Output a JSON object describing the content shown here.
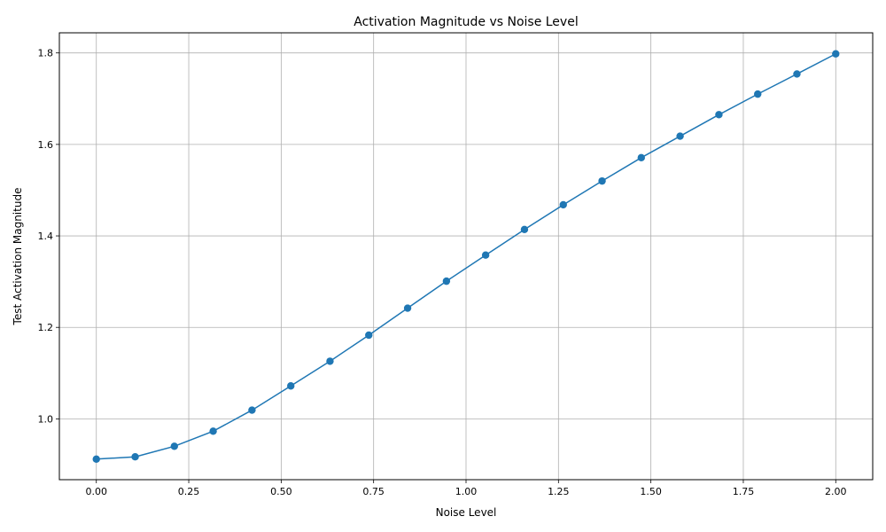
{
  "chart_data": {
    "type": "line",
    "title": "Activation Magnitude vs Noise Level",
    "xlabel": "Noise Level",
    "ylabel": "Test Activation Magnitude",
    "xlim": [
      -0.1,
      2.1
    ],
    "ylim": [
      0.867,
      1.844
    ],
    "xticks": [
      0.0,
      0.25,
      0.5,
      0.75,
      1.0,
      1.25,
      1.5,
      1.75,
      2.0
    ],
    "xtick_labels": [
      "0.00",
      "0.25",
      "0.50",
      "0.75",
      "1.00",
      "1.25",
      "1.50",
      "1.75",
      "2.00"
    ],
    "yticks": [
      1.0,
      1.2,
      1.4,
      1.6,
      1.8
    ],
    "ytick_labels": [
      "1.0",
      "1.2",
      "1.4",
      "1.6",
      "1.8"
    ],
    "grid": true,
    "marker": "circle",
    "color": "#1f77b4",
    "series": [
      {
        "x": [
          0.0,
          0.105,
          0.211,
          0.316,
          0.421,
          0.526,
          0.632,
          0.737,
          0.842,
          0.947,
          1.053,
          1.158,
          1.263,
          1.368,
          1.474,
          1.579,
          1.684,
          1.789,
          1.895,
          2.0
        ],
        "y": [
          0.912,
          0.917,
          0.94,
          0.973,
          1.019,
          1.072,
          1.126,
          1.183,
          1.242,
          1.301,
          1.358,
          1.414,
          1.468,
          1.52,
          1.571,
          1.618,
          1.665,
          1.71,
          1.754,
          1.798
        ]
      }
    ]
  }
}
